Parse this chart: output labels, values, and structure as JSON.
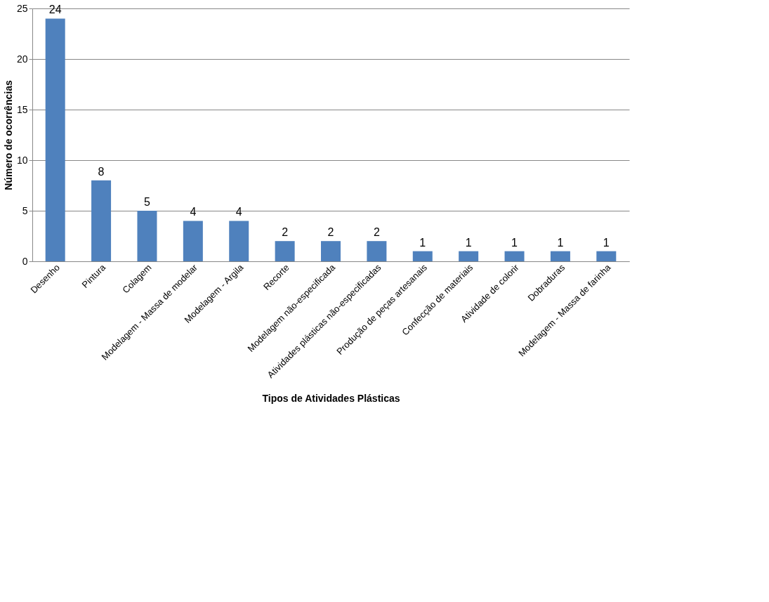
{
  "chart_data": {
    "type": "bar",
    "categories": [
      "Desenho",
      "Pintura",
      "Colagem",
      "Modelagem - Massa de modelar",
      "Modelagem - Argila",
      "Recorte",
      "Modelagem não-especificada",
      "Atividades plásticas não-especificadas",
      "Produção de peças artesanais",
      "Confecção de materiais",
      "Atividade de colorir",
      "Dobraduras",
      "Modelagem - Massa de farinha"
    ],
    "values": [
      24,
      8,
      5,
      4,
      4,
      2,
      2,
      2,
      1,
      1,
      1,
      1,
      1
    ],
    "color": "#4f81bd",
    "xlabel": "Tipos de Atividades Plásticas",
    "ylabel": "Número de ocorrências",
    "ylim": [
      0,
      25
    ],
    "yticks": [
      0,
      5,
      10,
      15,
      20,
      25
    ],
    "grid": "y",
    "data_labels": true
  }
}
